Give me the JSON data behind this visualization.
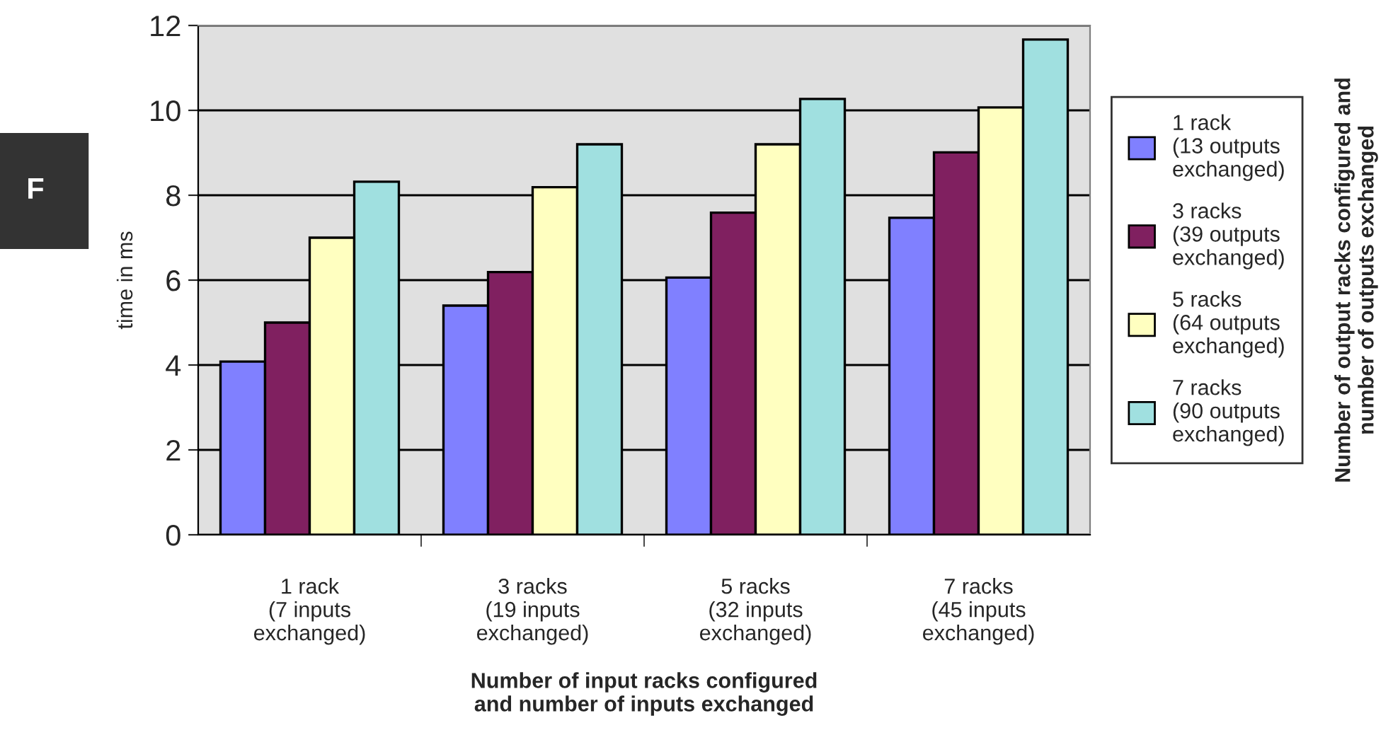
{
  "chart_data": {
    "type": "bar",
    "xlabel": "Number of input racks configured\nand number of inputs exchanged",
    "ylabel": "time in ms",
    "legend_title": "Number of output racks configured and\nnumber of outputs exchanged",
    "categories": [
      "1 rack\n(7 inputs\nexchanged)",
      "3 racks\n(19 inputs\nexchanged)",
      "5 racks\n(32 inputs\nexchanged)",
      "7 racks\n(45 inputs\nexchanged)"
    ],
    "series": [
      {
        "name": "1 rack\n(13 outputs\nexchanged)",
        "color": "#8080ff",
        "values": [
          4.08,
          5.4,
          6.06,
          7.47
        ]
      },
      {
        "name": "3 racks\n(39 outputs\nexchanged)",
        "color": "#802060",
        "values": [
          5.0,
          6.19,
          7.59,
          9.01
        ]
      },
      {
        "name": "5 racks\n(64 outputs\nexchanged)",
        "color": "#ffffc0",
        "values": [
          7.0,
          8.19,
          9.2,
          10.07
        ]
      },
      {
        "name": "7 racks\n(90 outputs\nexchanged)",
        "color": "#a0e0e0",
        "values": [
          8.32,
          9.2,
          10.27,
          11.67
        ]
      }
    ],
    "ylim": [
      0,
      12
    ],
    "yticks": [
      0,
      2,
      4,
      6,
      8,
      10,
      12
    ],
    "grid": "y",
    "legend": "right",
    "annotations": [
      "F"
    ]
  }
}
